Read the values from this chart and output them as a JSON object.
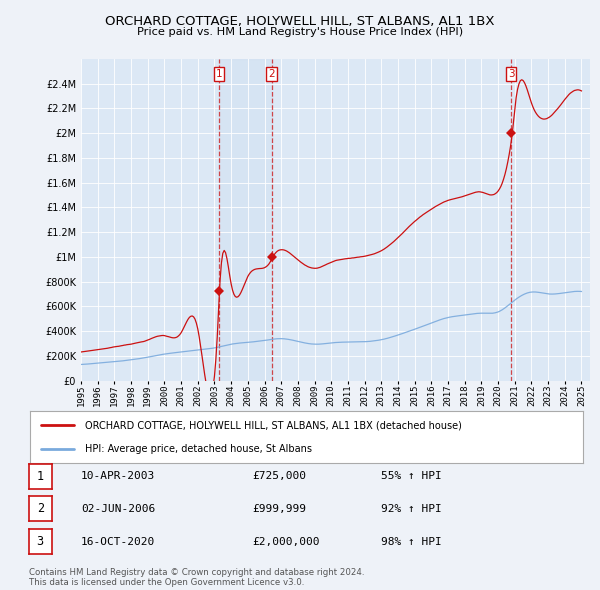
{
  "title": "ORCHARD COTTAGE, HOLYWELL HILL, ST ALBANS, AL1 1BX",
  "subtitle": "Price paid vs. HM Land Registry's House Price Index (HPI)",
  "background_color": "#eef2f8",
  "plot_bg_color": "#dce8f5",
  "shade_color": "#ccddf0",
  "ylim": [
    0,
    2600000
  ],
  "yticks": [
    0,
    200000,
    400000,
    600000,
    800000,
    1000000,
    1200000,
    1400000,
    1600000,
    1800000,
    2000000,
    2200000,
    2400000
  ],
  "ytick_labels": [
    "£0",
    "£200K",
    "£400K",
    "£600K",
    "£800K",
    "£1M",
    "£1.2M",
    "£1.4M",
    "£1.6M",
    "£1.8M",
    "£2M",
    "£2.2M",
    "£2.4M"
  ],
  "xlim_start": 1995.0,
  "xlim_end": 2025.5,
  "purchase_dates": [
    2003.27,
    2006.42,
    2020.79
  ],
  "purchase_prices": [
    725000,
    999999,
    2000000
  ],
  "purchase_labels": [
    "1",
    "2",
    "3"
  ],
  "red_line_color": "#cc1111",
  "blue_line_color": "#7aaadd",
  "legend_red_label": "ORCHARD COTTAGE, HOLYWELL HILL, ST ALBANS, AL1 1BX (detached house)",
  "legend_blue_label": "HPI: Average price, detached house, St Albans",
  "table_entries": [
    {
      "num": "1",
      "date": "10-APR-2003",
      "price": "£725,000",
      "pct": "55% ↑ HPI"
    },
    {
      "num": "2",
      "date": "02-JUN-2006",
      "price": "£999,999",
      "pct": "92% ↑ HPI"
    },
    {
      "num": "3",
      "date": "16-OCT-2020",
      "price": "£2,000,000",
      "pct": "98% ↑ HPI"
    }
  ],
  "footnote": "Contains HM Land Registry data © Crown copyright and database right 2024.\nThis data is licensed under the Open Government Licence v3.0."
}
